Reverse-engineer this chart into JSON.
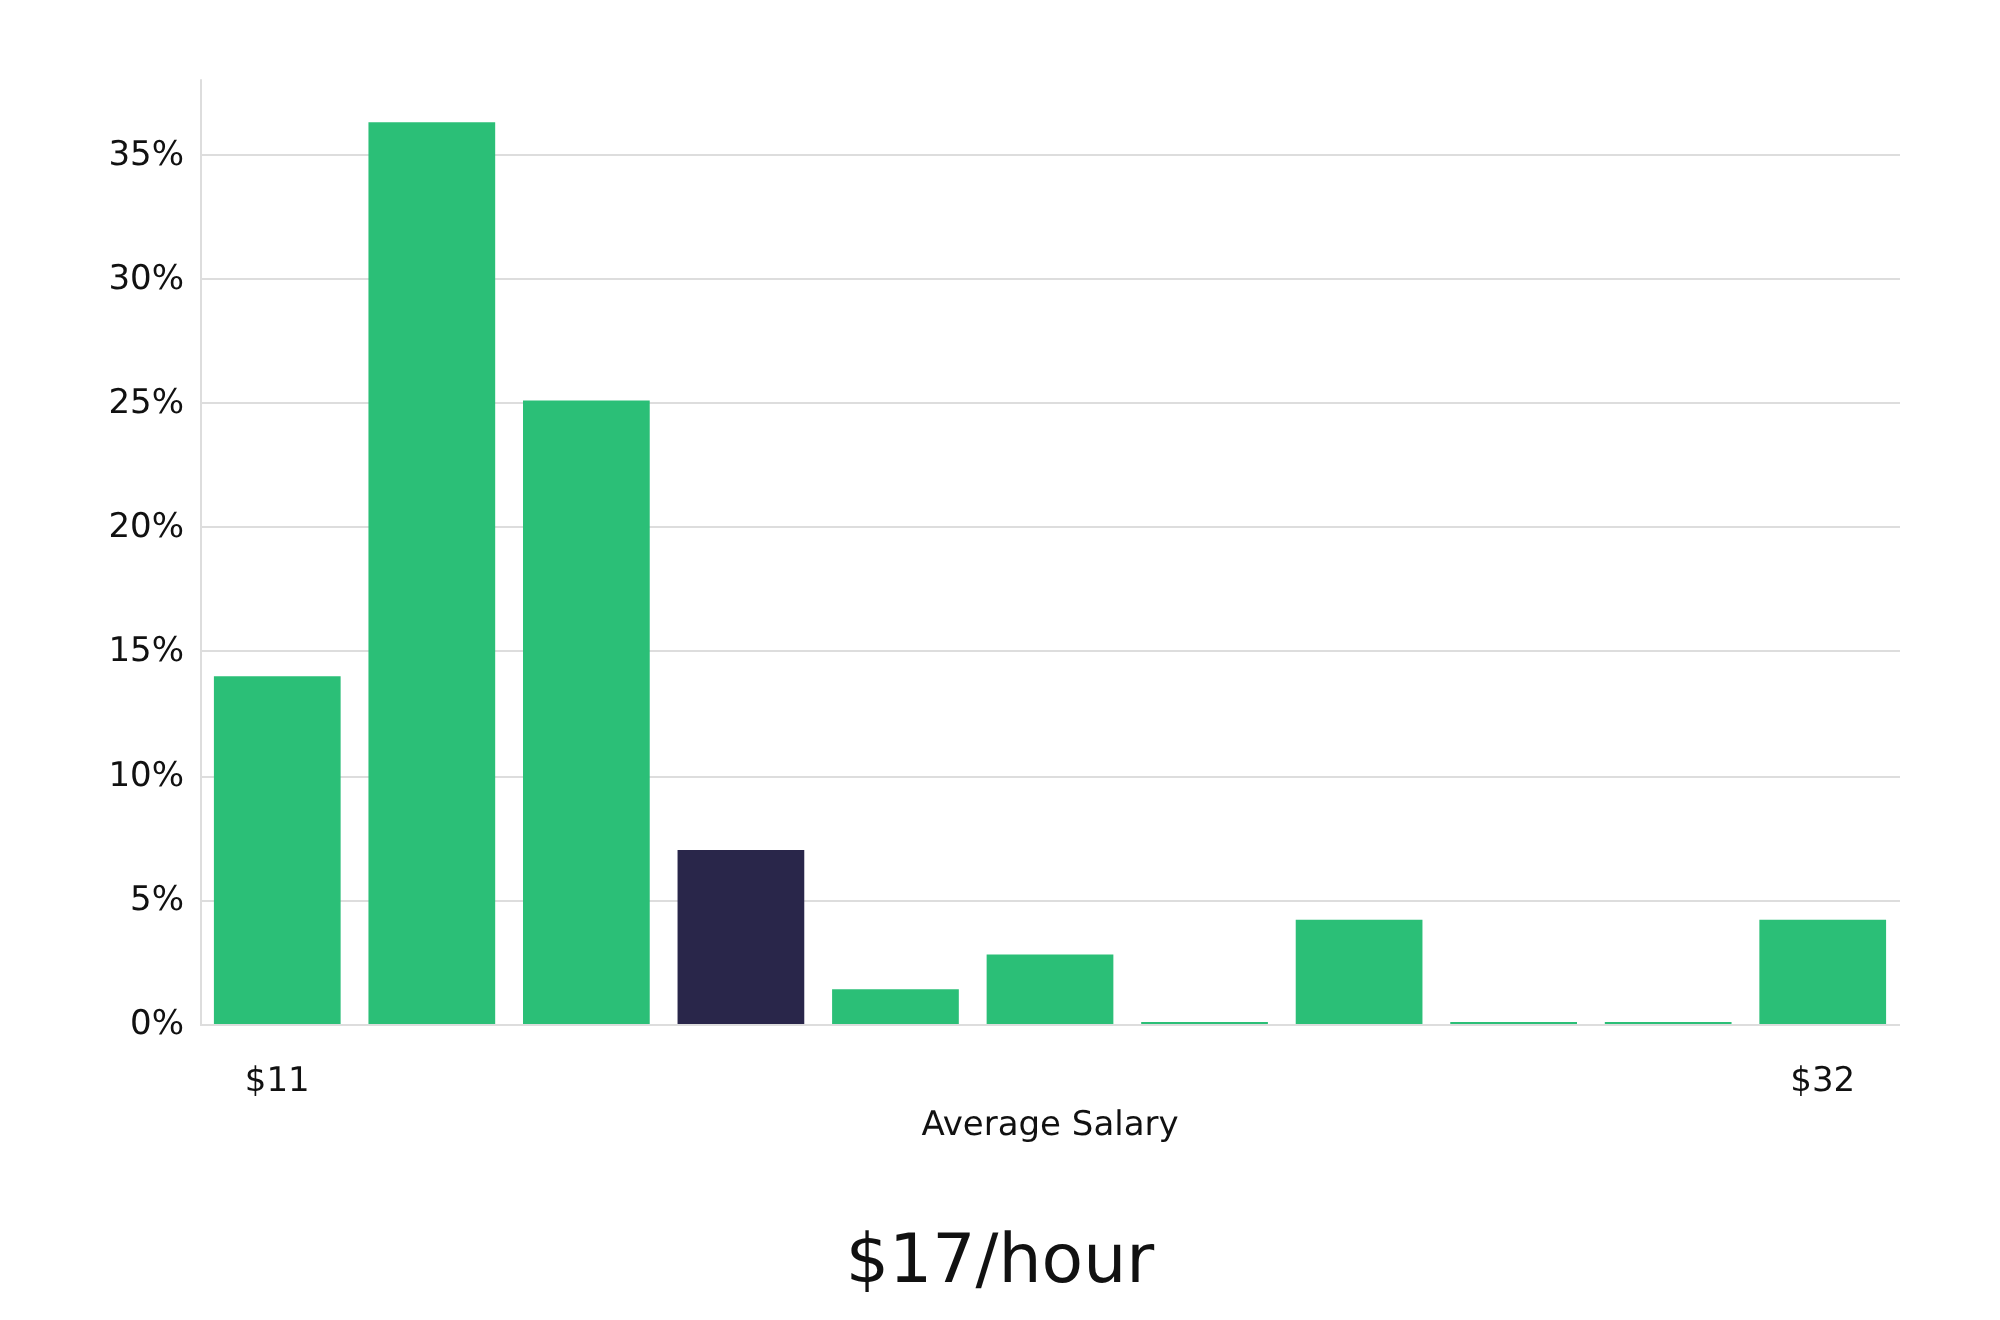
{
  "chart_data": {
    "type": "bar",
    "title": "$17/hour",
    "xlabel": "Average Salary",
    "categories": [
      "$11",
      null,
      null,
      null,
      null,
      null,
      null,
      null,
      null,
      null,
      "$32"
    ],
    "values": [
      14.0,
      36.3,
      25.1,
      7.0,
      1.4,
      2.8,
      0,
      4.2,
      0,
      0,
      4.2
    ],
    "colors": [
      "#2bbf77",
      "#2bbf77",
      "#2bbf77",
      "#29264a",
      "#2bbf77",
      "#2bbf77",
      "#2bbf77",
      "#2bbf77",
      "#2bbf77",
      "#2bbf77",
      "#2bbf77"
    ],
    "ylim": [
      0,
      38
    ],
    "yticks": [
      {
        "value": 0,
        "label": "0%"
      },
      {
        "value": 5,
        "label": "5%"
      },
      {
        "value": 10,
        "label": "10%"
      },
      {
        "value": 15,
        "label": "15%"
      },
      {
        "value": 20,
        "label": "20%"
      },
      {
        "value": 25,
        "label": "25%"
      },
      {
        "value": 30,
        "label": "30%"
      },
      {
        "value": 35,
        "label": "35%"
      }
    ],
    "grid": "y"
  }
}
